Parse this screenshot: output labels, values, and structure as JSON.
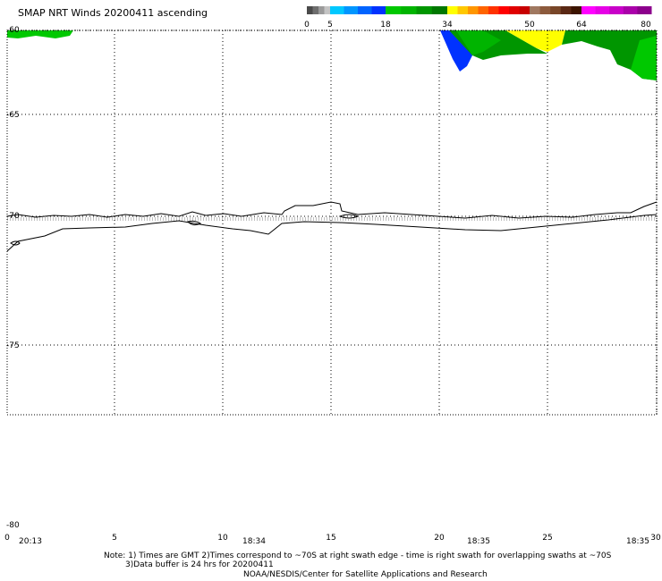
{
  "title": "SMAP NRT Winds 20200411 ascending",
  "colorbar": {
    "tick_labels": [
      "0",
      "5",
      "18",
      "34",
      "50",
      "64",
      "80"
    ],
    "segments": [
      {
        "from": 0,
        "to": 5,
        "colors": [
          "#4a4a4a",
          "#6e6e6e",
          "#9a9a9a",
          "#c4c4c4"
        ]
      },
      {
        "from": 5,
        "to": 18,
        "colors": [
          "#00c8ff",
          "#0096ff",
          "#0064ff",
          "#0032ff"
        ]
      },
      {
        "from": 18,
        "to": 34,
        "colors": [
          "#00c800",
          "#00b400",
          "#009600",
          "#007800"
        ]
      },
      {
        "from": 34,
        "to": 50,
        "colors": [
          "#ffff00",
          "#ffc800",
          "#ff9600",
          "#ff6400",
          "#ff3200",
          "#ff0000",
          "#e00000",
          "#c80000"
        ]
      },
      {
        "from": 50,
        "to": 64,
        "colors": [
          "#a07860",
          "#8c5a3c",
          "#784628",
          "#5a2814",
          "#3c1400"
        ]
      },
      {
        "from": 64,
        "to": 80,
        "colors": [
          "#ff00ff",
          "#e600e6",
          "#c800c8",
          "#aa00aa",
          "#8c008c"
        ]
      }
    ]
  },
  "axes": {
    "y_labels": [
      "-60",
      "-65",
      "-70",
      "-75",
      "-80"
    ],
    "x_labels": [
      "0",
      "5",
      "10",
      "15",
      "20",
      "25",
      "30"
    ],
    "time_labels": [
      "20:13",
      "18:34",
      "18:35",
      "18:35"
    ]
  },
  "notes": {
    "line1": "Note: 1) Times are GMT 2)Times correspond to ~70S at right swath edge - time is right swath for overlapping swaths at ~70S",
    "line2": "3)Data buffer is 24 hrs for 20200411",
    "line3": "NOAA/NESDIS/Center for Satellite Applications and Research"
  }
}
